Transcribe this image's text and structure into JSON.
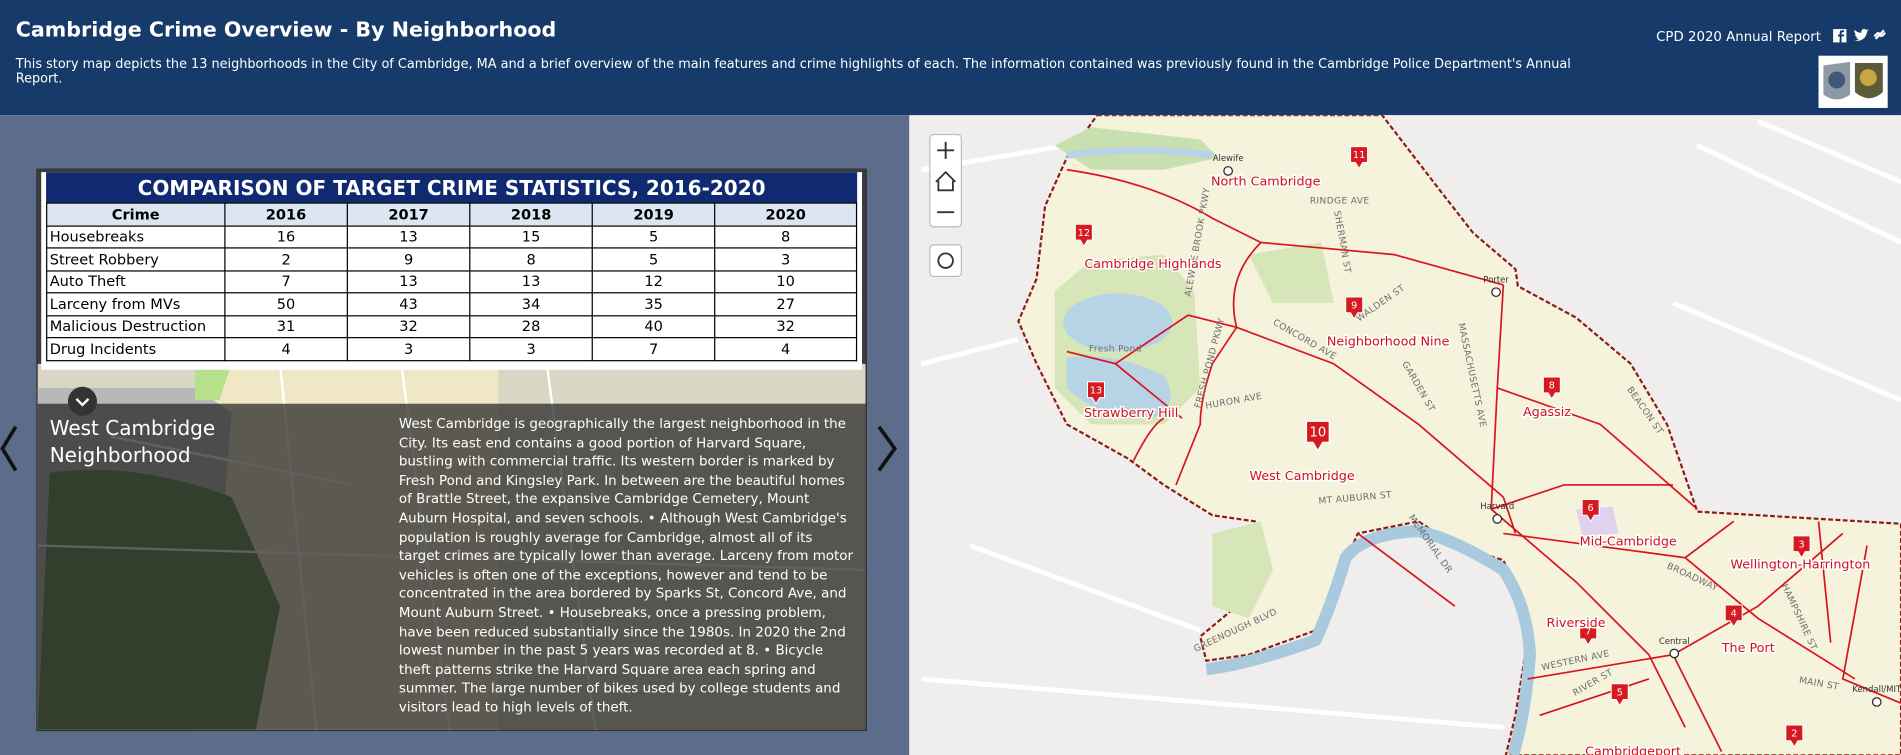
{
  "header": {
    "title": "Cambridge Crime Overview - By Neighborhood",
    "description": "This story map depicts the 13 neighborhoods in the City of Cambridge, MA and a brief overview of the main features and crime highlights of each. The information contained was previously found in the Cambridge Police Department's Annual Report.",
    "report_link": "CPD 2020 Annual Report"
  },
  "table": {
    "title": "COMPARISON OF TARGET CRIME STATISTICS, 2016-2020",
    "columns": [
      "Crime",
      "2016",
      "2017",
      "2018",
      "2019",
      "2020"
    ],
    "rows": [
      [
        "Housebreaks",
        16,
        13,
        15,
        5,
        8
      ],
      [
        "Street Robbery",
        2,
        9,
        8,
        5,
        3
      ],
      [
        "Auto Theft",
        7,
        13,
        13,
        12,
        10
      ],
      [
        "Larceny from MVs",
        50,
        43,
        34,
        35,
        27
      ],
      [
        "Malicious Destruction",
        31,
        32,
        28,
        40,
        32
      ],
      [
        "Drug Incidents",
        4,
        3,
        3,
        7,
        4
      ]
    ]
  },
  "story": {
    "title": "West Cambridge Neighborhood",
    "text": "West Cambridge is geographically the largest neighborhood in the City. Its east end contains a good portion of Harvard Square, bustling with commercial traffic. Its western border is marked by Fresh Pond and Kingsley Park. In between are the beautiful homes of Brattle Street, the expansive Cambridge Cemetery, Mount Auburn Hospital, and seven schools. • Although West Cambridge's population is roughly average for Cambridge, almost all of its target crimes are typically lower than average. Larceny from motor vehicles is often one of the exceptions, however and tend to be concentrated in the area bordered by Sparks St, Concord Ave, and Mount Auburn Street. • Housebreaks, once a pressing problem, have been reduced substantially since the 1980s. In 2020 the 2nd lowest number in the past 5 years was recorded at 8. • Bicycle theft patterns strike the Harvard Square area each spring and summer. The large number of bikes used by college students and visitors lead to high levels of theft."
  },
  "map": {
    "neighborhoods": [
      {
        "number": "11",
        "label": "North Cambridge"
      },
      {
        "number": "12",
        "label": "Cambridge Highlands"
      },
      {
        "number": "9",
        "label": "Neighborhood Nine"
      },
      {
        "number": "8",
        "label": "Agassiz"
      },
      {
        "number": "13",
        "label": "Strawberry Hill"
      },
      {
        "number": "10",
        "label": "West Cambridge"
      },
      {
        "number": "6",
        "label": "Mid-Cambridge"
      },
      {
        "number": "3",
        "label": "Wellington-Harrington"
      },
      {
        "number": "7",
        "label": "Riverside"
      },
      {
        "number": "4",
        "label": "The Port"
      },
      {
        "number": "5",
        "label": "Cambridgeport"
      },
      {
        "number": "2",
        "label": null
      }
    ],
    "streets": [
      "RINDGE AVE",
      "SHERMAN ST",
      "WALDEN ST",
      "CONCORD AVE",
      "GARDEN ST",
      "MASSACHUSETTS AVE",
      "BEACON ST",
      "HURON AVE",
      "MT AUBURN ST",
      "BROADWAY",
      "WESTERN AVE",
      "RIVER ST",
      "MAIN ST",
      "GREENOUGH BLVD",
      "FRESH POND PKWY",
      "ALEWIFE BROOK PKWY",
      "MEMORIAL DR",
      "HAMPSHIRE ST",
      "Fresh Pond"
    ],
    "stations": [
      "Alewife",
      "Porter",
      "Harvard",
      "Central",
      "Kendall/MIT"
    ]
  }
}
